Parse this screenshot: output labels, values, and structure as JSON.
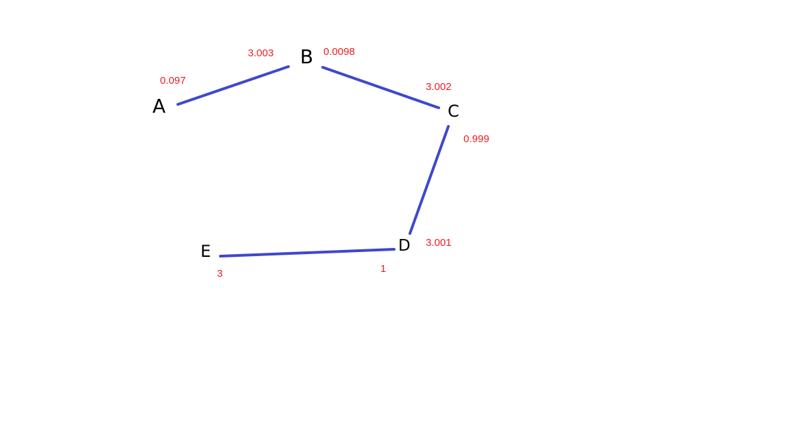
{
  "colors": {
    "edge": "#3f48cc",
    "weight_text": "#ed1c24",
    "node_text": "#000000",
    "background": "#ffffff"
  },
  "nodes": {
    "a": "A",
    "b": "B",
    "c": "C",
    "d": "D",
    "e": "E"
  },
  "edges": [
    {
      "from": "A",
      "to": "B"
    },
    {
      "from": "B",
      "to": "C"
    },
    {
      "from": "C",
      "to": "D"
    },
    {
      "from": "D",
      "to": "E"
    }
  ],
  "weights": {
    "a": "0.097",
    "b_left": "3.003",
    "b_right": "0.0098",
    "c_top": "3.002",
    "c_right": "0.999",
    "d_right": "3.001",
    "d_below": "1",
    "e": "3"
  }
}
